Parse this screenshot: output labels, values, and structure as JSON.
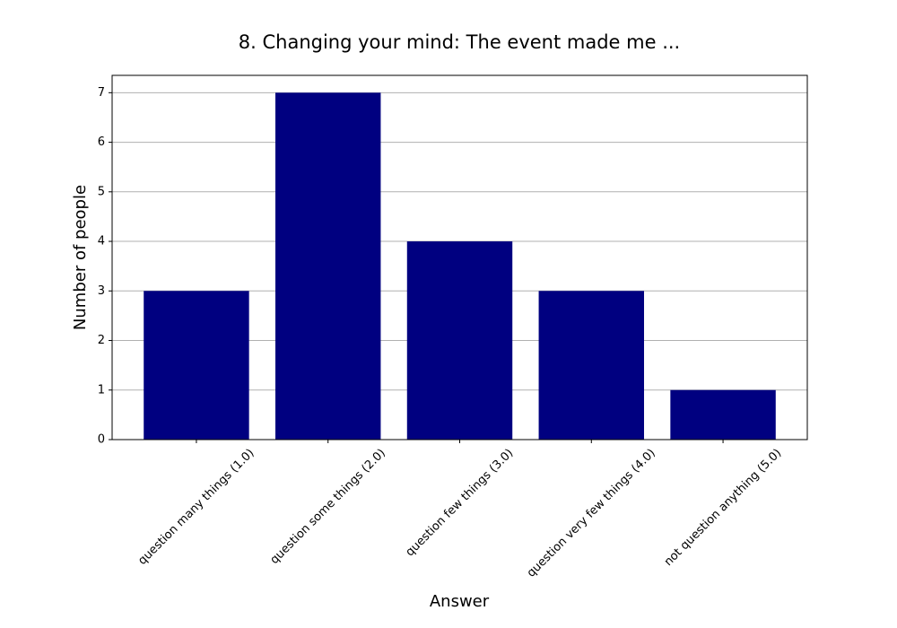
{
  "chart_data": {
    "type": "bar",
    "title": "8. Changing your mind: The event made me ...",
    "x_label": "Answer",
    "y_label": "Number of people",
    "categories": [
      "question many things (1.0)",
      "question some things (2.0)",
      "question few things (3.0)",
      "question very few things (4.0)",
      "not question anything (5.0)"
    ],
    "values": [
      3,
      7,
      4,
      3,
      1
    ],
    "color": "#000080",
    "ylim": [
      0,
      7.35
    ],
    "yticks": [
      0,
      1,
      2,
      3,
      4,
      5,
      6,
      7
    ],
    "grid": true
  }
}
